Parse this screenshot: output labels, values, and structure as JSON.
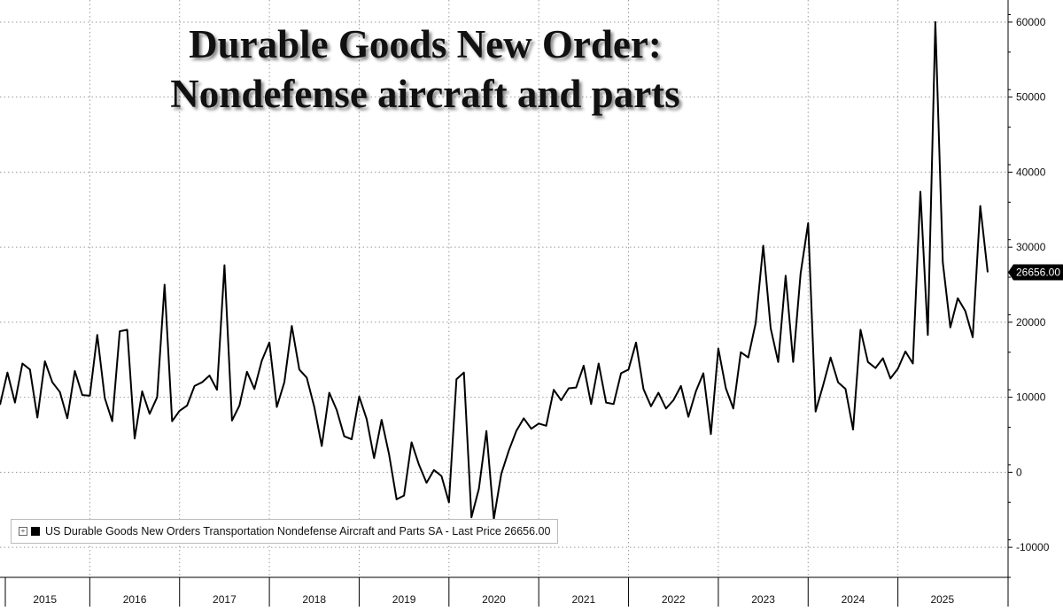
{
  "chart_data": {
    "type": "line",
    "title": [
      "Durable Goods New Order:",
      "Nondefense aircraft and parts"
    ],
    "legend": {
      "label": "US Durable Goods New Orders Transportation Nondefense Aircraft and Parts SA - Last Price 26656.00",
      "placement": "bottom-left"
    },
    "last_price_label": "26656.00",
    "y_axis": {
      "side": "right",
      "ylim": [
        -14000,
        62000
      ],
      "ticks": [
        -10000,
        0,
        10000,
        20000,
        30000,
        40000,
        50000,
        60000
      ],
      "tick_labels": [
        "-10000",
        "0",
        "10000",
        "20000",
        "30000",
        "40000",
        "50000",
        "60000"
      ]
    },
    "x_axis": {
      "start": "2015-01",
      "tick_labels": [
        "2015",
        "2016",
        "2017",
        "2018",
        "2019",
        "2020",
        "2021",
        "2022",
        "2023",
        "2024",
        "2025"
      ]
    },
    "grid": true,
    "colors": {
      "line": "#000000",
      "grid": "#9a9a9a",
      "label_bg": "#000000",
      "label_text": "#ffffff"
    },
    "series": [
      {
        "name": "US Durable Goods New Orders Transportation Nondefense Aircraft and Parts SA",
        "frequency": "monthly",
        "start": "2015-01",
        "values": [
          9000,
          13300,
          9300,
          14500,
          13700,
          7300,
          14800,
          12000,
          10700,
          7200,
          13500,
          10300,
          10200,
          18300,
          9900,
          6800,
          18800,
          19000,
          4500,
          10800,
          7800,
          10000,
          25000,
          6800,
          8200,
          8900,
          11500,
          12000,
          12900,
          11000,
          27600,
          6900,
          8900,
          13400,
          11100,
          14900,
          17300,
          8700,
          12000,
          19500,
          13700,
          12600,
          8700,
          3500,
          10600,
          8300,
          4800,
          4400,
          10100,
          7100,
          1900,
          7000,
          2400,
          -3600,
          -3100,
          4000,
          1000,
          -1400,
          300,
          -500,
          -4000,
          12400,
          13300,
          -6000,
          -2200,
          5500,
          -6200,
          -200,
          2900,
          5500,
          7200,
          5800,
          6500,
          6200,
          11000,
          9600,
          11200,
          11300,
          14200,
          9100,
          14500,
          9300,
          9100,
          13200,
          13700,
          17300,
          11100,
          8800,
          10600,
          8500,
          9600,
          11500,
          7400,
          10800,
          13200,
          5100,
          16500,
          11200,
          8500,
          16000,
          15300,
          19900,
          30200,
          19200,
          14700,
          26200,
          14700,
          26500,
          33200,
          8100,
          11600,
          15300,
          12000,
          11100,
          5700,
          19000,
          14700,
          13900,
          15200,
          12500,
          13800,
          16100,
          14500,
          37400,
          18300,
          60000,
          28000,
          19300,
          23200,
          21500,
          18000,
          35500,
          26656
        ]
      }
    ]
  }
}
